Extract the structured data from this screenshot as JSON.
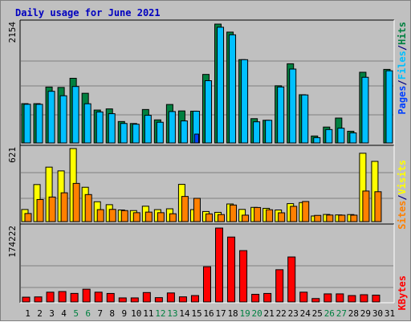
{
  "chart_data": [
    {
      "type": "bar",
      "title": "Daily usage for June 2021",
      "categories": [
        "1",
        "2",
        "3",
        "4",
        "5",
        "6",
        "7",
        "8",
        "9",
        "10",
        "11",
        "12",
        "13",
        "14",
        "15",
        "16",
        "17",
        "18",
        "19",
        "20",
        "21",
        "22",
        "23",
        "24",
        "25",
        "26",
        "27",
        "28",
        "29",
        "30",
        "31"
      ],
      "weekend_days": [
        "5",
        "6",
        "12",
        "13",
        "19",
        "20",
        "26",
        "27"
      ],
      "ymax": 2154,
      "ylabel_max": "2154",
      "series": [
        {
          "name": "Hits",
          "color": "#008040",
          "values": [
            712,
            712,
            1013,
            1006,
            1172,
            900,
            596,
            617,
            388,
            352,
            606,
            418,
            697,
            580,
            576,
            1242,
            2154,
            2009,
            1510,
            440,
            411,
            1036,
            1435,
            874,
            126,
            288,
            451,
            212,
            1281,
            0,
            1333
          ]
        },
        {
          "name": "Files",
          "color": "#00c0ff",
          "values": [
            701,
            700,
            936,
            855,
            1023,
            710,
            562,
            530,
            353,
            339,
            501,
            375,
            569,
            399,
            575,
            1128,
            2097,
            1960,
            1509,
            383,
            410,
            1014,
            1339,
            870,
            96,
            243,
            267,
            182,
            1190,
            0,
            1308
          ]
        },
        {
          "name": "Pages",
          "color": "#0040ff",
          "values": [
            0,
            0,
            0,
            0,
            0,
            0,
            0,
            0,
            0,
            0,
            0,
            0,
            0,
            0,
            160,
            0,
            0,
            0,
            0,
            0,
            0,
            0,
            0,
            0,
            0,
            0,
            0,
            0,
            0,
            0,
            0
          ]
        }
      ]
    },
    {
      "type": "bar",
      "ymax": 621,
      "ylabel_max": "621",
      "series": [
        {
          "name": "Visits",
          "color": "#ffff00",
          "values": [
            103,
            315,
            463,
            431,
            621,
            292,
            169,
            144,
            99,
            94,
            131,
            102,
            109,
            317,
            102,
            86,
            79,
            150,
            104,
            121,
            113,
            99,
            153,
            162,
            48,
            61,
            57,
            60,
            581,
            512,
            0
          ]
        },
        {
          "name": "Sites",
          "color": "#ff8000",
          "values": [
            69,
            188,
            209,
            245,
            325,
            230,
            102,
            104,
            94,
            76,
            81,
            76,
            67,
            214,
            198,
            66,
            60,
            141,
            55,
            120,
            101,
            75,
            130,
            171,
            53,
            56,
            55,
            55,
            260,
            254,
            0
          ]
        }
      ]
    },
    {
      "type": "bar",
      "ymax": 174222,
      "ylabel_max": "174222",
      "series": [
        {
          "name": "KBytes",
          "color": "#ff0000",
          "values": [
            11234,
            11842,
            23007,
            24500,
            20110,
            30019,
            22995,
            20008,
            9516,
            9525,
            22150,
            10160,
            21205,
            12004,
            15023,
            83012,
            174222,
            153010,
            121020,
            18024,
            20020,
            76010,
            106012,
            23025,
            8026,
            19028,
            19030,
            15030,
            17028,
            16029,
            0
          ]
        }
      ]
    }
  ]
}
